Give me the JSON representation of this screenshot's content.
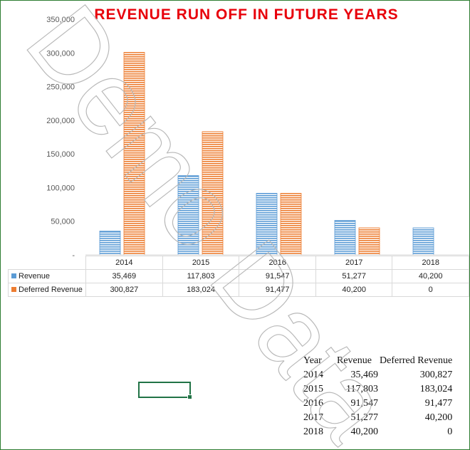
{
  "chart_data": {
    "type": "bar",
    "title": "REVENUE RUN OFF IN FUTURE YEARS",
    "categories": [
      "2014",
      "2015",
      "2016",
      "2017",
      "2018"
    ],
    "series": [
      {
        "name": "Revenue",
        "values": [
          35469,
          117803,
          91547,
          51277,
          40200
        ],
        "color": "#5b9bd5"
      },
      {
        "name": "Deferred Revenue",
        "values": [
          300827,
          183024,
          91477,
          40200,
          0
        ],
        "color": "#ed7d31"
      }
    ],
    "ylim": [
      0,
      350000
    ],
    "yticks": [
      "-",
      "50,000",
      "100,000",
      "150,000",
      "200,000",
      "250,000",
      "300,000",
      "350,000"
    ],
    "table_values": [
      [
        "35,469",
        "117,803",
        "91,547",
        "51,277",
        "40,200"
      ],
      [
        "300,827",
        "183,024",
        "91,477",
        "40,200",
        "0"
      ]
    ],
    "grid": false,
    "legend": "data-table"
  },
  "sheet_table": {
    "headers": [
      "Year",
      "Revenue",
      "Deferred Revenue"
    ],
    "rows": [
      [
        "2014",
        "35,469",
        "300,827"
      ],
      [
        "2015",
        "117,803",
        "183,024"
      ],
      [
        "2016",
        "91,547",
        "91,477"
      ],
      [
        "2017",
        "51,277",
        "40,200"
      ],
      [
        "2018",
        "40,200",
        "0"
      ]
    ]
  },
  "watermark": "Demo Data"
}
